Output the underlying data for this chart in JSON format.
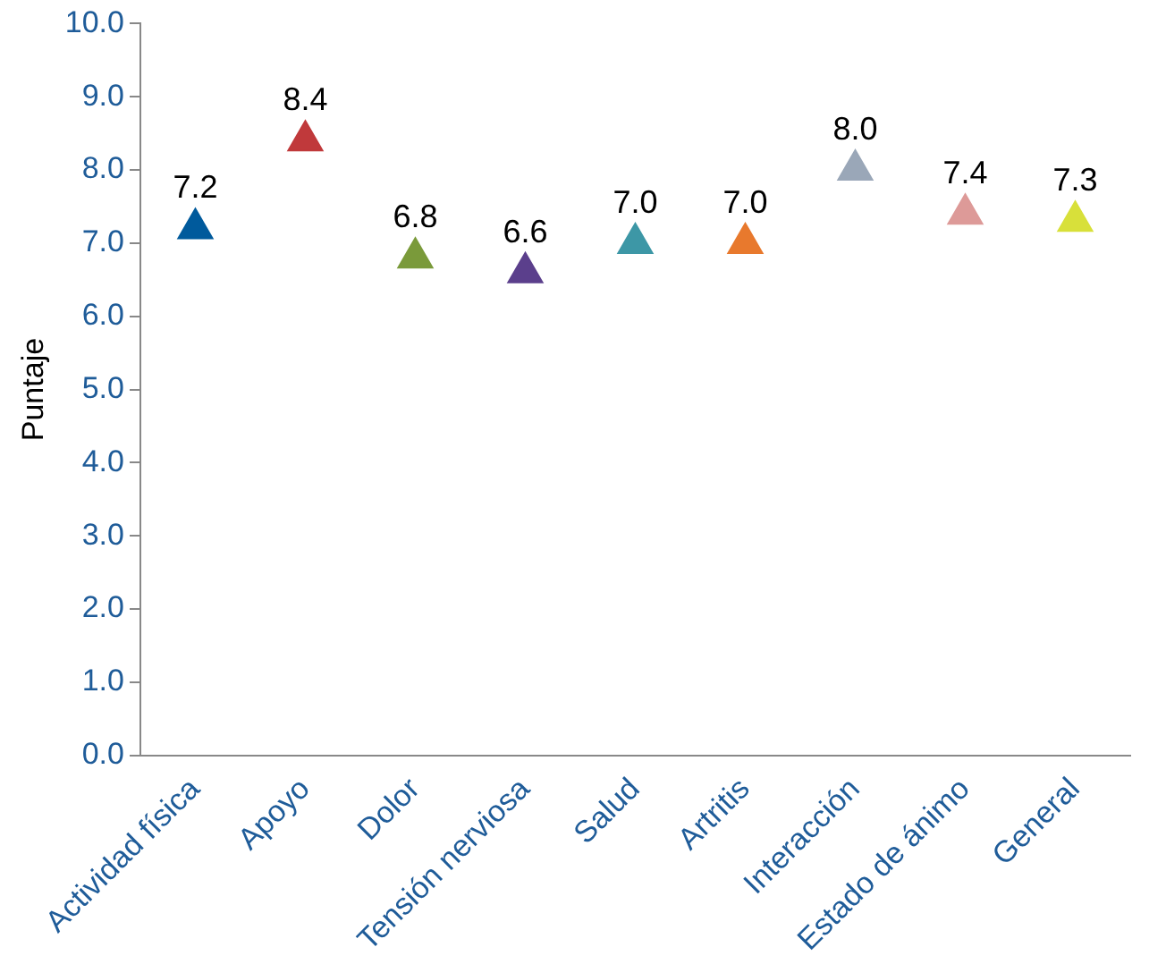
{
  "chart_data": {
    "type": "scatter",
    "ylabel": "Puntaje",
    "categories": [
      "Actividad física",
      "Apoyo",
      "Dolor",
      "Tensión nerviosa",
      "Salud",
      "Artritis",
      "Interacción",
      "Estado de ánimo",
      "General"
    ],
    "values": [
      7.2,
      8.4,
      6.8,
      6.6,
      7.0,
      7.0,
      8.0,
      7.4,
      7.3
    ],
    "colors": [
      "#005a9c",
      "#c0393b",
      "#7a9a3a",
      "#5b3f8c",
      "#3d97a6",
      "#e8792d",
      "#9aa7b8",
      "#dd9a98",
      "#d8e03a"
    ],
    "ylim": [
      0,
      10
    ],
    "yticks": [
      {
        "value": 0,
        "label": "0.0"
      },
      {
        "value": 1,
        "label": "1.0"
      },
      {
        "value": 2,
        "label": "2.0"
      },
      {
        "value": 3,
        "label": "3.0"
      },
      {
        "value": 4,
        "label": "4.0"
      },
      {
        "value": 5,
        "label": "5.0"
      },
      {
        "value": 6,
        "label": "6.0"
      },
      {
        "value": 7,
        "label": "7.0"
      },
      {
        "value": 8,
        "label": "8.0"
      },
      {
        "value": 9,
        "label": "9.0"
      },
      {
        "value": 10,
        "label": "10.0"
      }
    ],
    "value_labels": [
      "7.2",
      "8.4",
      "6.8",
      "6.6",
      "7.0",
      "7.0",
      "8.0",
      "7.4",
      "7.3"
    ],
    "marker": "triangle",
    "grid": false,
    "legend": false
  }
}
